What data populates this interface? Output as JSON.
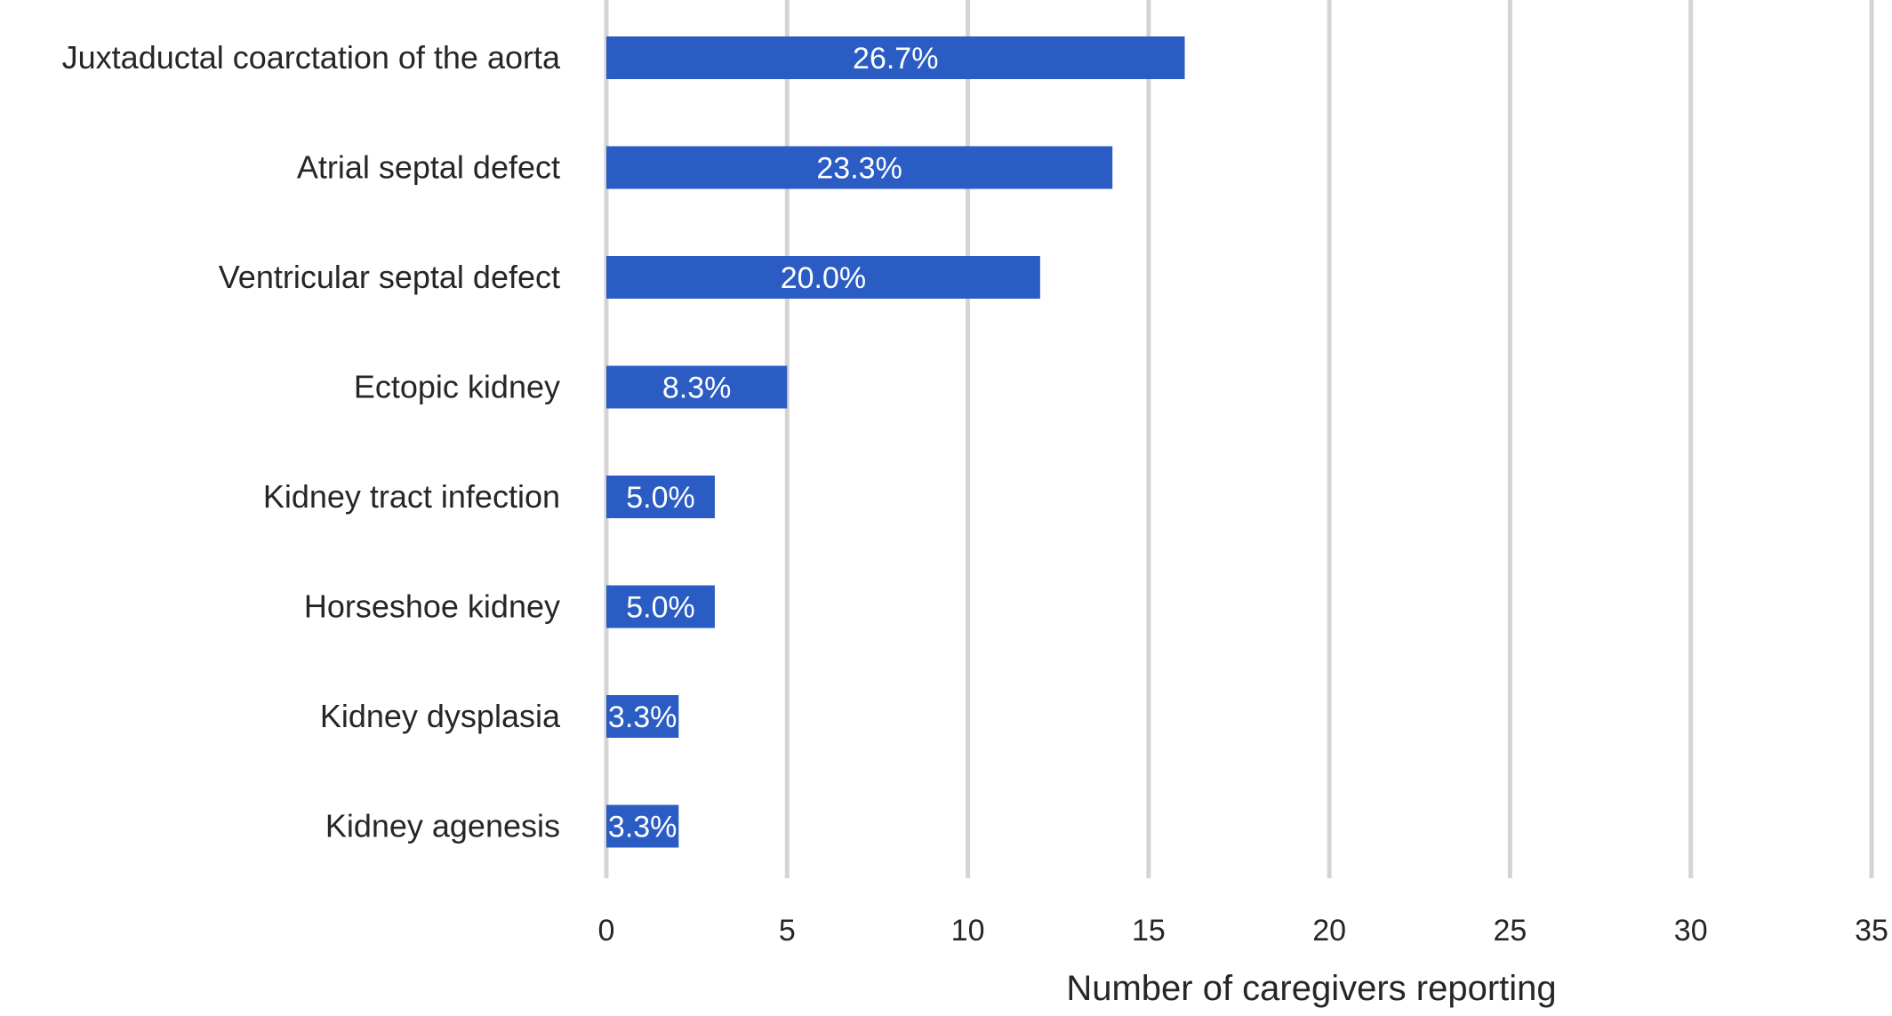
{
  "chart_data": {
    "type": "bar",
    "orientation": "horizontal",
    "categories": [
      "Juxtaductal coarctation of the aorta",
      "Atrial septal defect",
      "Ventricular septal defect",
      "Ectopic kidney",
      "Kidney tract infection",
      "Horseshoe kidney",
      "Kidney dysplasia",
      "Kidney agenesis"
    ],
    "values": [
      16,
      14,
      12,
      5,
      3,
      3,
      2,
      2
    ],
    "data_labels": [
      "26.7%",
      "23.3%",
      "20.0%",
      "8.3%",
      "5.0%",
      "5.0%",
      "3.3%",
      "3.3%"
    ],
    "xlabel": "Number of caregivers reporting",
    "ylabel": "",
    "xlim": [
      0,
      35
    ],
    "ticks": [
      0,
      5,
      10,
      15,
      20,
      25,
      30,
      35
    ],
    "tick_labels": [
      "0",
      "5",
      "10",
      "15",
      "20",
      "25",
      "30",
      "35"
    ],
    "grid": "vertical",
    "legend": "none",
    "colors": {
      "bar": "#2a5cc4",
      "grid": "#d4d4d4",
      "text": "#262626",
      "data_label": "#ffffff"
    }
  }
}
